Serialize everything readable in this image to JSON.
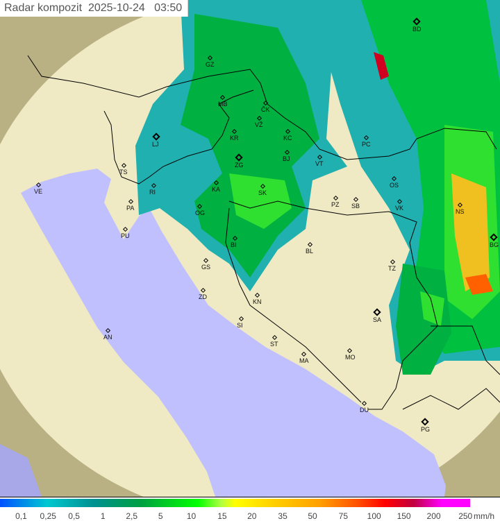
{
  "title": {
    "label": "Radar kompozit",
    "date": "2025-10-24",
    "time": "03:50"
  },
  "cities": [
    {
      "code": "BD",
      "capital": true
    },
    {
      "code": "GZ"
    },
    {
      "code": "MB"
    },
    {
      "code": "ČK"
    },
    {
      "code": "VŽ"
    },
    {
      "code": "KR"
    },
    {
      "code": "KC"
    },
    {
      "code": "LJ",
      "capital": true
    },
    {
      "code": "ZG",
      "capital": true
    },
    {
      "code": "BJ"
    },
    {
      "code": "VT"
    },
    {
      "code": "PC"
    },
    {
      "code": "OS"
    },
    {
      "code": "TS"
    },
    {
      "code": "VE"
    },
    {
      "code": "RI"
    },
    {
      "code": "KA"
    },
    {
      "code": "SK"
    },
    {
      "code": "PZ"
    },
    {
      "code": "SB"
    },
    {
      "code": "VK"
    },
    {
      "code": "NS"
    },
    {
      "code": "PA"
    },
    {
      "code": "OG"
    },
    {
      "code": "BG",
      "capital": true
    },
    {
      "code": "PU"
    },
    {
      "code": "BL"
    },
    {
      "code": "BI"
    },
    {
      "code": "GS"
    },
    {
      "code": "TZ"
    },
    {
      "code": "ZD"
    },
    {
      "code": "KN"
    },
    {
      "code": "SA",
      "capital": true
    },
    {
      "code": "SI"
    },
    {
      "code": "AN"
    },
    {
      "code": "ST"
    },
    {
      "code": "MO"
    },
    {
      "code": "MA"
    },
    {
      "code": "DU"
    },
    {
      "code": "PG",
      "capital": true
    }
  ],
  "legend": {
    "unit": "mm/h",
    "labels": [
      "0,1",
      "0,25",
      "0,5",
      "1",
      "2,5",
      "5",
      "10",
      "15",
      "20",
      "35",
      "50",
      "75",
      "100",
      "150",
      "200",
      "250"
    ],
    "colors": {
      "low": "#0050ff",
      "mid": "#00ff00",
      "high": "#ffff00",
      "heavy": "#ff0000",
      "extreme": "#ff00ff"
    }
  },
  "colors": {
    "sea": "#c0c0ff",
    "land": "#efe9c4",
    "outside": "#b9b184"
  }
}
